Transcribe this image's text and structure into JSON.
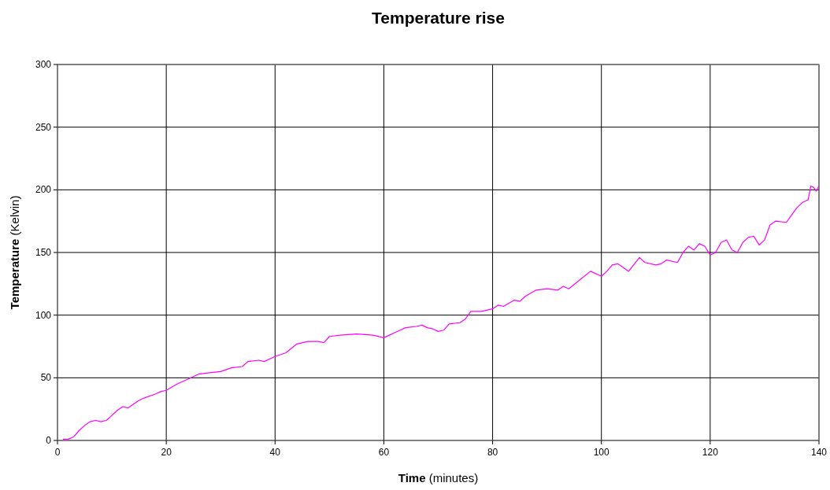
{
  "chart_data": {
    "type": "line",
    "title": "Temperature rise",
    "xlabel": "Time (minutes)",
    "ylabel": "Temperature (Kelvin)",
    "x": [
      1,
      2,
      3,
      4,
      5,
      6,
      7,
      8,
      9,
      10,
      11,
      12,
      13,
      14,
      15,
      16,
      18,
      19,
      20,
      22,
      24,
      26,
      28,
      30,
      32,
      34,
      35,
      37,
      38,
      40,
      42,
      44,
      46,
      48,
      49,
      50,
      52,
      55,
      58,
      60,
      61,
      62,
      64,
      66,
      67,
      68,
      69,
      70,
      71,
      72,
      74,
      75,
      76,
      78,
      80,
      81,
      82,
      84,
      85,
      86,
      88,
      90,
      92,
      93,
      94,
      96,
      98,
      100,
      101,
      102,
      103,
      105,
      107,
      108,
      110,
      111,
      112,
      114,
      115,
      116,
      117,
      118,
      119,
      120,
      121,
      122,
      123,
      124,
      125,
      126,
      127,
      128,
      129,
      130,
      131,
      132,
      134,
      135,
      136,
      137,
      138,
      138.5,
      139,
      139.5,
      140
    ],
    "series": [
      {
        "color": "#ff00ff",
        "values": [
          1,
          1,
          3,
          8,
          12,
          15,
          16,
          15,
          16,
          20,
          24,
          27,
          26,
          29,
          32,
          34,
          37,
          39,
          40,
          45,
          49,
          53,
          54,
          55,
          58,
          59,
          63,
          64,
          63,
          67,
          70,
          77,
          79,
          79,
          78,
          83,
          84,
          85,
          84,
          82,
          84,
          86,
          90,
          91,
          92,
          90,
          89,
          87,
          88,
          93,
          94,
          97,
          103,
          103,
          105,
          108,
          107,
          112,
          111,
          115,
          120,
          121,
          120,
          123,
          121,
          128,
          135,
          131,
          135,
          140,
          141,
          135,
          146,
          142,
          140,
          141,
          144,
          142,
          150,
          155,
          152,
          157,
          155,
          148,
          150,
          158,
          160,
          152,
          150,
          158,
          162,
          163,
          156,
          160,
          172,
          175,
          174,
          180,
          186,
          190,
          192,
          203,
          202,
          199,
          203
        ]
      }
    ],
    "xlim": [
      0,
      140
    ],
    "xticks": [
      0,
      20,
      40,
      60,
      80,
      100,
      120,
      140
    ],
    "ylim": [
      0,
      300
    ],
    "yticks": [
      0,
      50,
      100,
      150,
      200,
      250,
      300
    ],
    "grid": true,
    "marker": "none",
    "line_style": "solid"
  }
}
